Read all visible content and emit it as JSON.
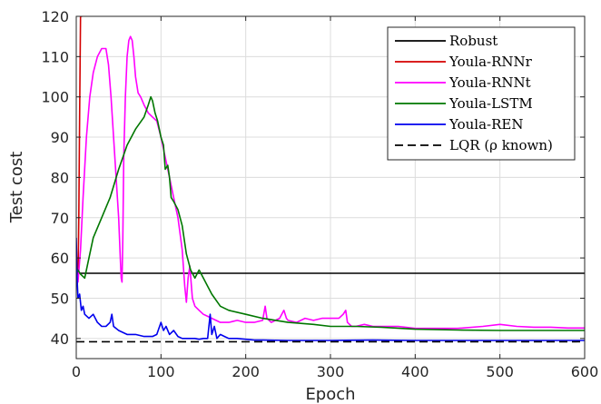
{
  "chart_data": {
    "type": "line",
    "xlabel": "Epoch",
    "ylabel": "Test cost",
    "xlim": [
      0,
      600
    ],
    "ylim": [
      35,
      120
    ],
    "xticks": [
      0,
      100,
      200,
      300,
      400,
      500,
      600
    ],
    "yticks": [
      40,
      50,
      60,
      70,
      80,
      90,
      100,
      110,
      120
    ],
    "grid": true,
    "legend_position": "top-right",
    "series": [
      {
        "name": "Robust",
        "color": "#000000",
        "dash": "solid",
        "x": [
          0,
          600
        ],
        "y": [
          56.2,
          56.2
        ]
      },
      {
        "name": "Youla-RNNr",
        "color": "#d40000",
        "dash": "solid",
        "x": [
          0,
          1,
          2,
          3,
          4,
          5,
          6,
          7
        ],
        "y": [
          62,
          56,
          55,
          70,
          95,
          120,
          120,
          120
        ]
      },
      {
        "name": "Youla-RNNt",
        "color": "#ff00ff",
        "dash": "solid",
        "x": [
          0,
          2,
          5,
          8,
          12,
          16,
          20,
          25,
          30,
          35,
          38,
          41,
          44,
          47,
          50,
          52,
          53,
          54,
          55,
          56,
          58,
          60,
          62,
          64,
          66,
          68,
          70,
          73,
          76,
          80,
          85,
          90,
          95,
          100,
          105,
          110,
          115,
          120,
          125,
          128,
          130,
          132,
          134,
          137,
          140,
          145,
          150,
          155,
          160,
          165,
          170,
          180,
          190,
          200,
          210,
          220,
          223,
          225,
          230,
          240,
          245,
          248,
          250,
          260,
          270,
          280,
          290,
          300,
          310,
          315,
          318,
          320,
          325,
          330,
          340,
          350,
          360,
          380,
          400,
          420,
          450,
          480,
          500,
          520,
          540,
          560,
          580,
          600
        ],
        "y": [
          57,
          54,
          62,
          75,
          90,
          100,
          106,
          110,
          112,
          112,
          108,
          100,
          90,
          80,
          70,
          60,
          55,
          54,
          65,
          85,
          100,
          110,
          114,
          115,
          114,
          110,
          105,
          101,
          100,
          98,
          96,
          95,
          94,
          90,
          85,
          80,
          75,
          70,
          62,
          53,
          49,
          55,
          58,
          50,
          48,
          47,
          46,
          45.5,
          45,
          44.5,
          44,
          44,
          44.5,
          44,
          44,
          44.5,
          48,
          45,
          44,
          45,
          47,
          45,
          44.5,
          44,
          45,
          44.5,
          45,
          45,
          45,
          46,
          47,
          44,
          43,
          43,
          43.5,
          43,
          43,
          43,
          42.5,
          42.5,
          42.5,
          43,
          43.5,
          43,
          42.8,
          42.8,
          42.6,
          42.6
        ]
      },
      {
        "name": "Youla-LSTM",
        "color": "#007700",
        "dash": "solid",
        "x": [
          0,
          2,
          5,
          10,
          15,
          20,
          30,
          40,
          50,
          60,
          70,
          80,
          85,
          88,
          90,
          93,
          96,
          100,
          103,
          105,
          108,
          110,
          112,
          115,
          120,
          125,
          130,
          135,
          140,
          145,
          150,
          155,
          160,
          170,
          180,
          200,
          220,
          250,
          280,
          300,
          330,
          360,
          400,
          450,
          500,
          550,
          600
        ],
        "y": [
          56,
          57,
          56,
          55,
          60,
          65,
          70,
          75,
          82,
          88,
          92,
          95,
          98,
          100,
          99,
          96,
          94,
          90,
          88,
          82,
          83,
          80,
          75,
          74,
          72,
          68,
          61,
          57,
          55,
          57,
          55,
          53,
          51,
          48,
          47,
          46,
          45,
          44,
          43.5,
          43,
          43,
          42.8,
          42.3,
          42.1,
          42,
          42,
          42
        ]
      },
      {
        "name": "Youla-REN",
        "color": "#0000ee",
        "dash": "solid",
        "x": [
          0,
          1,
          2,
          4,
          6,
          8,
          10,
          15,
          20,
          25,
          30,
          35,
          40,
          42,
          44,
          50,
          60,
          70,
          80,
          90,
          95,
          100,
          103,
          106,
          110,
          115,
          120,
          125,
          130,
          135,
          140,
          145,
          150,
          155,
          158,
          160,
          163,
          166,
          170,
          175,
          180,
          190,
          200,
          210,
          220,
          250,
          300,
          350,
          400,
          450,
          500,
          550,
          600
        ],
        "y": [
          65,
          55,
          50,
          51,
          47,
          48,
          46,
          45,
          46,
          44,
          43,
          43,
          44,
          46,
          43,
          42,
          41,
          41,
          40.5,
          40.5,
          41,
          44,
          42,
          43,
          41,
          42,
          40.5,
          40,
          40,
          40,
          40,
          39.8,
          40,
          40,
          46,
          41,
          43,
          40,
          41,
          40.5,
          40,
          40,
          39.8,
          39.6,
          39.6,
          39.5,
          39.5,
          39.6,
          39.5,
          39.5,
          39.5,
          39.5,
          39.5
        ]
      },
      {
        "name": "LQR (ρ known)",
        "color": "#000000",
        "dash": "dashed",
        "x": [
          0,
          600
        ],
        "y": [
          39.2,
          39.2
        ]
      }
    ]
  }
}
